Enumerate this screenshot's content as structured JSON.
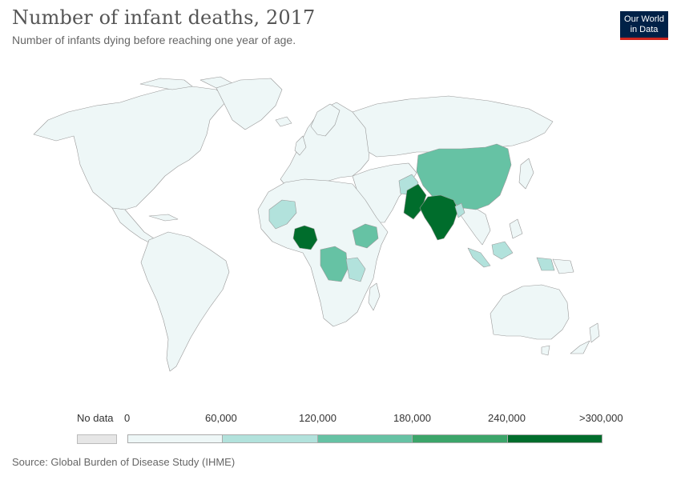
{
  "header": {
    "title": "Number of infant deaths, 2017",
    "subtitle": "Number of infants dying before reaching one year of age.",
    "logo_line1": "Our World",
    "logo_line2": "in Data"
  },
  "legend": {
    "nodata_label": "No data",
    "nodata_color": "#e6e6e6",
    "ticks": [
      "0",
      "60,000",
      "120,000",
      "180,000",
      "240,000",
      ">300,000"
    ],
    "colors": [
      "#eef7f7",
      "#b2e2dc",
      "#66c2a4",
      "#3ca56a",
      "#006d2c"
    ]
  },
  "map": {
    "ocean_color": "#ffffff",
    "border_color": "#999999",
    "highlighted": [
      {
        "name": "India",
        "value_range": ">300,000",
        "color": "#006d2c"
      },
      {
        "name": "Pakistan",
        "value_range": ">300,000",
        "color": "#006d2c"
      },
      {
        "name": "Nigeria",
        "value_range": ">300,000",
        "color": "#006d2c"
      },
      {
        "name": "China",
        "value_range": "120,000-180,000",
        "color": "#66c2a4"
      },
      {
        "name": "DR Congo",
        "value_range": "120,000-180,000",
        "color": "#66c2a4"
      },
      {
        "name": "Ethiopia",
        "value_range": "120,000-180,000",
        "color": "#66c2a4"
      },
      {
        "name": "Bangladesh",
        "value_range": "60,000-120,000",
        "color": "#b2e2dc"
      },
      {
        "name": "Afghanistan",
        "value_range": "60,000-120,000",
        "color": "#b2e2dc"
      },
      {
        "name": "Indonesia",
        "value_range": "60,000-120,000",
        "color": "#b2e2dc"
      },
      {
        "name": "Mali",
        "value_range": "60,000-120,000",
        "color": "#b2e2dc"
      },
      {
        "name": "Tanzania",
        "value_range": "60,000-120,000",
        "color": "#b2e2dc"
      }
    ]
  },
  "footer": {
    "source": "Source: Global Burden of Disease Study (IHME)"
  }
}
